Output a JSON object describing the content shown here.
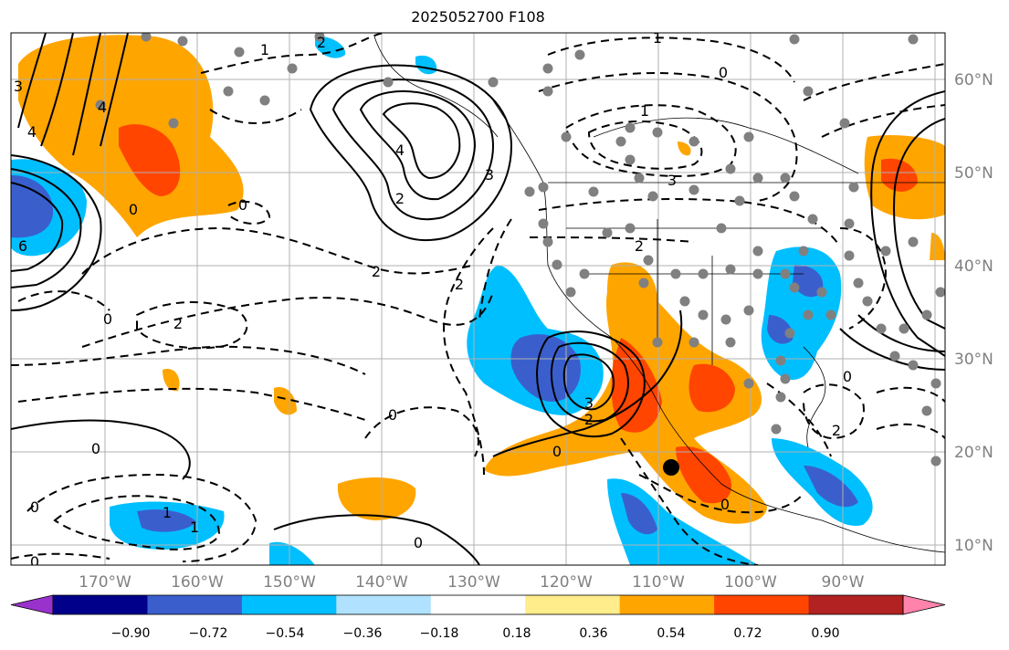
{
  "title": "2025052700 F108",
  "lat_ticks": [
    "60°N",
    "50°N",
    "40°N",
    "30°N",
    "20°N",
    "10°N"
  ],
  "lon_ticks": [
    "170°W",
    "160°W",
    "150°W",
    "140°W",
    "130°W",
    "120°W",
    "110°W",
    "100°W",
    "90°W"
  ],
  "colorbar": {
    "colors": [
      "#9932cc",
      "#00008b",
      "#3a5fcd",
      "#00bfff",
      "#b0e2ff",
      "#ffffff",
      "#ffec8b",
      "#ffa500",
      "#ff4500",
      "#b22222",
      "#ff83aa"
    ],
    "labels": [
      "−0.90",
      "−0.72",
      "−0.54",
      "−0.36",
      "−0.18",
      "0.18",
      "0.36",
      "0.54",
      "0.72",
      "0.90"
    ]
  },
  "contour_labels": [
    "1",
    "2",
    "1",
    "0",
    "1",
    "3",
    "4",
    "2",
    "0",
    "4",
    "3",
    "0",
    "2",
    "0",
    "2",
    "2",
    "2",
    "1",
    "0",
    "3",
    "2",
    "0",
    "0",
    "0",
    "2",
    "1",
    "0",
    "0",
    "0",
    "0",
    "6",
    "3",
    "4"
  ],
  "colors": {
    "grid": "#b0b0b0",
    "station": "#808080",
    "marker": "#000000"
  }
}
